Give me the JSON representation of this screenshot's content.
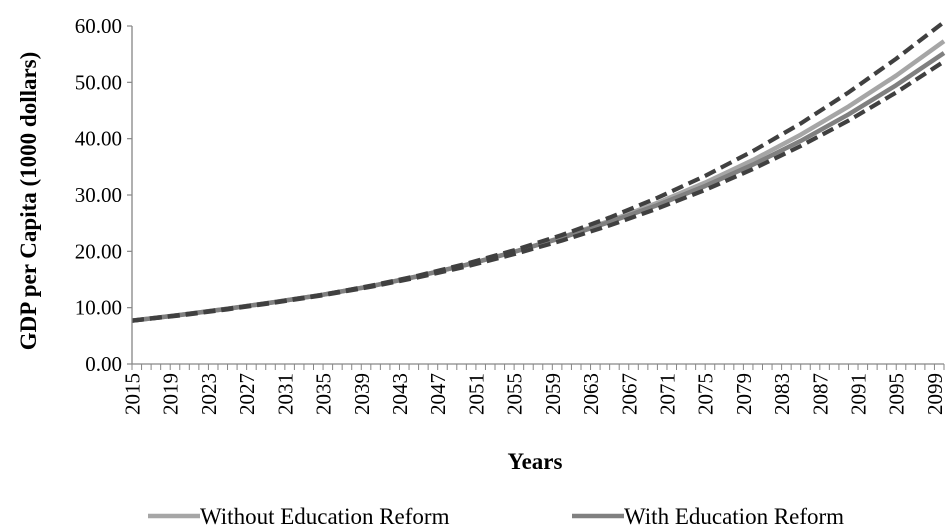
{
  "chart_data": {
    "type": "line",
    "title": "",
    "xlabel": "Years",
    "ylabel": "GDP per Capita (1000 dollars)",
    "ylim": [
      0,
      60
    ],
    "y_ticks": [
      "0.00",
      "10.00",
      "20.00",
      "30.00",
      "40.00",
      "50.00",
      "60.00"
    ],
    "x_ticks": [
      "2015",
      "2019",
      "2023",
      "2027",
      "2031",
      "2035",
      "2039",
      "2043",
      "2047",
      "2051",
      "2055",
      "2059",
      "2063",
      "2067",
      "2071",
      "2075",
      "2079",
      "2083",
      "2087",
      "2091",
      "2095",
      "2099"
    ],
    "x_range": [
      2015,
      2100
    ],
    "grid": false,
    "legend_position": "bottom",
    "x": [
      2015,
      2020,
      2025,
      2030,
      2035,
      2040,
      2045,
      2050,
      2055,
      2060,
      2065,
      2070,
      2075,
      2080,
      2085,
      2090,
      2095,
      2100
    ],
    "series": [
      {
        "name": "Without Education Reform",
        "color": "#a6a6a6",
        "style": "solid",
        "in_legend": true,
        "values": [
          7.7,
          8.7,
          9.8,
          11.0,
          12.3,
          13.8,
          15.6,
          17.6,
          19.9,
          22.5,
          25.4,
          28.6,
          32.2,
          36.2,
          40.7,
          45.7,
          51.2,
          57.3
        ]
      },
      {
        "name": "With Education Reform",
        "color": "#808080",
        "style": "solid",
        "in_legend": true,
        "values": [
          7.7,
          8.7,
          9.8,
          11.0,
          12.3,
          13.8,
          15.6,
          17.6,
          19.9,
          22.4,
          25.2,
          28.2,
          31.6,
          35.4,
          39.6,
          44.3,
          49.5,
          55.2
        ]
      },
      {
        "name": "",
        "color": "#404040",
        "style": "dashed",
        "in_legend": false,
        "values": [
          7.7,
          8.7,
          9.8,
          11.0,
          12.3,
          13.9,
          15.7,
          17.8,
          20.2,
          22.9,
          26.0,
          29.5,
          33.4,
          37.8,
          42.7,
          48.2,
          54.2,
          60.7
        ]
      },
      {
        "name": "",
        "color": "#404040",
        "style": "dashed",
        "in_legend": false,
        "values": [
          7.7,
          8.6,
          9.7,
          10.9,
          12.2,
          13.7,
          15.4,
          17.3,
          19.5,
          21.9,
          24.6,
          27.6,
          30.9,
          34.6,
          38.7,
          43.2,
          48.2,
          53.7
        ]
      }
    ]
  }
}
